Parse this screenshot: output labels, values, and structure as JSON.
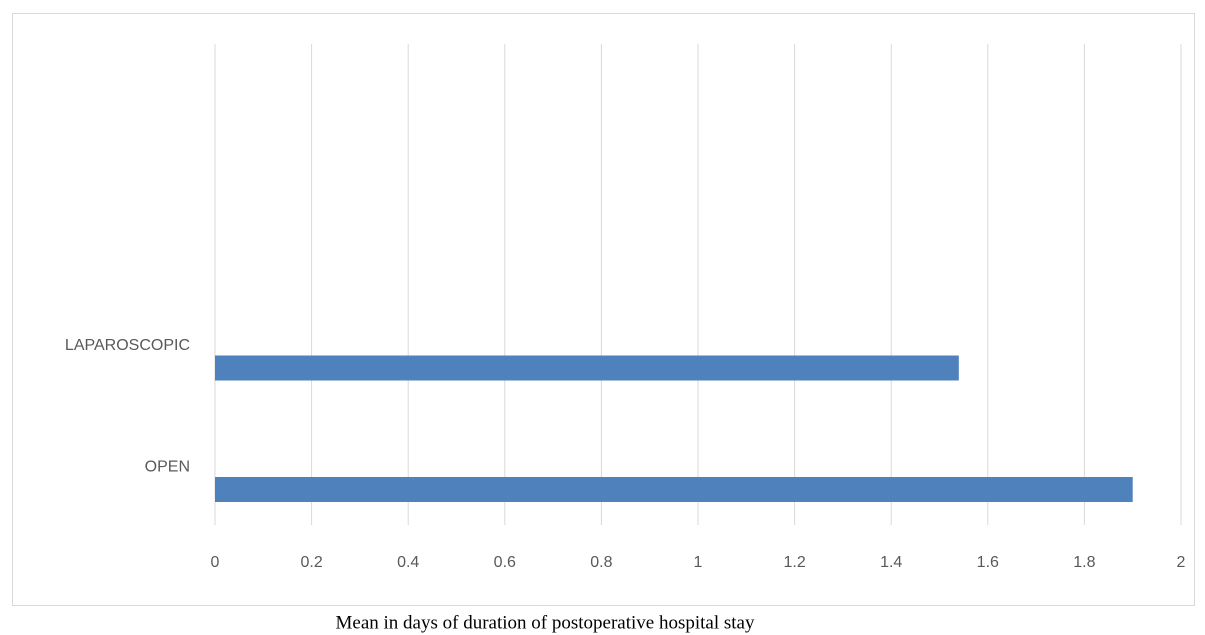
{
  "chart_data": {
    "type": "hbar",
    "categories": [
      "LAPAROSCOPIC",
      "OPEN"
    ],
    "values": [
      1.54,
      1.9
    ],
    "color": "#4f81bd",
    "xlim": [
      0,
      2
    ],
    "xticks": [
      0,
      0.2,
      0.4,
      0.6,
      0.8,
      1,
      1.2,
      1.4,
      1.6,
      1.8,
      2
    ],
    "grid": true,
    "xlabel": "Mean in days of duration of postoperative hospital stay"
  }
}
